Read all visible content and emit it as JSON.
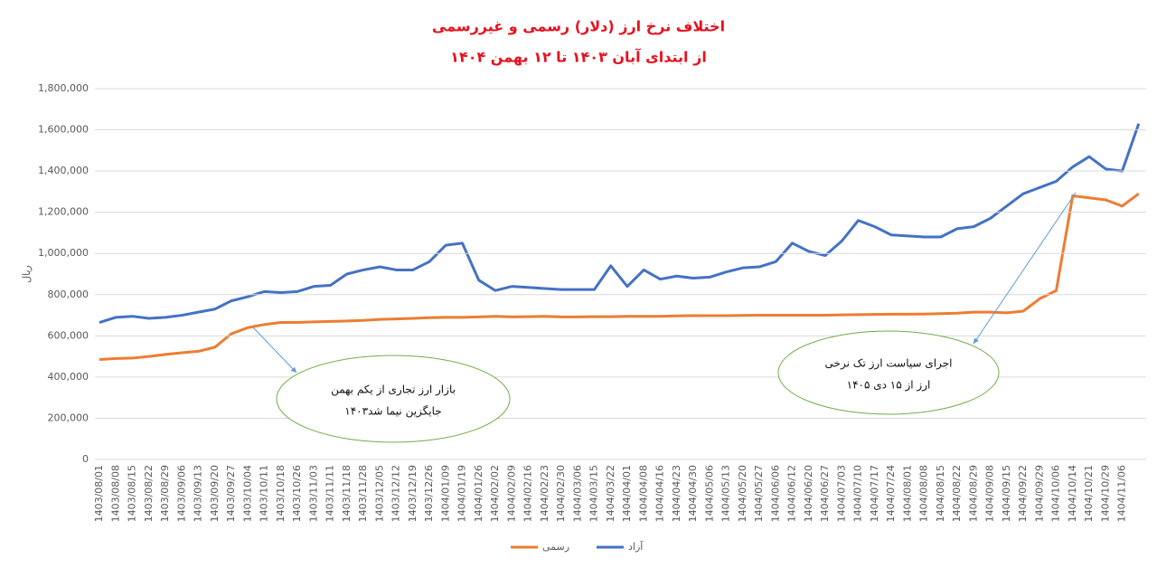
{
  "chart_data": {
    "type": "line",
    "title": [
      "اختلاف نرخ ارز (دلار) رسمی و غیررسمی",
      "از ابتدای آبان ۱۴۰۳ تا ۱۲ بهمن ۱۴۰۴"
    ],
    "y_label": "ریال",
    "categories": [
      "1403/08/01",
      "1403/08/08",
      "1403/08/15",
      "1403/08/22",
      "1403/08/29",
      "1403/09/06",
      "1403/09/13",
      "1403/09/20",
      "1403/09/27",
      "1403/10/04",
      "1403/10/11",
      "1403/10/18",
      "1403/10/26",
      "1403/11/03",
      "1403/11/11",
      "1403/11/18",
      "1403/11/28",
      "1403/12/05",
      "1403/12/12",
      "1403/12/19",
      "1403/12/26",
      "1404/01/09",
      "1404/01/19",
      "1404/01/26",
      "1404/02/02",
      "1404/02/09",
      "1404/02/16",
      "1404/02/23",
      "1404/02/30",
      "1404/03/06",
      "1404/03/15",
      "1404/03/22",
      "1404/04/01",
      "1404/04/08",
      "1404/04/16",
      "1404/04/23",
      "1404/04/30",
      "1404/05/06",
      "1404/05/13",
      "1404/05/20",
      "1404/05/27",
      "1404/06/06",
      "1404/06/12",
      "1404/06/20",
      "1404/06/27",
      "1404/07/03",
      "1404/07/10",
      "1404/07/17",
      "1404/07/24",
      "1404/08/01",
      "1404/08/08",
      "1404/08/15",
      "1404/08/22",
      "1404/08/29",
      "1404/09/08",
      "1404/09/15",
      "1404/09/22",
      "1404/09/29",
      "1404/10/06",
      "1404/10/14",
      "1404/10/21",
      "1404/10/29",
      "1404/11/06",
      null
    ],
    "series": [
      {
        "name": "آزاد",
        "color": "#4472c4",
        "values": [
          665000,
          690000,
          695000,
          685000,
          690000,
          700000,
          715000,
          730000,
          770000,
          790000,
          815000,
          810000,
          815000,
          840000,
          845000,
          900000,
          920000,
          935000,
          920000,
          920000,
          960000,
          1040000,
          1050000,
          870000,
          820000,
          840000,
          835000,
          830000,
          825000,
          825000,
          825000,
          940000,
          840000,
          920000,
          875000,
          890000,
          880000,
          885000,
          910000,
          930000,
          935000,
          960000,
          1050000,
          1010000,
          990000,
          1060000,
          1160000,
          1130000,
          1090000,
          1085000,
          1080000,
          1080000,
          1120000,
          1130000,
          1170000,
          1230000,
          1290000,
          1320000,
          1350000,
          1420000,
          1470000,
          1410000,
          1400000,
          1630000
        ]
      },
      {
        "name": "رسمی",
        "color": "#ed7d31",
        "values": [
          485000,
          490000,
          492000,
          500000,
          510000,
          518000,
          525000,
          545000,
          610000,
          640000,
          655000,
          665000,
          665000,
          668000,
          670000,
          672000,
          675000,
          680000,
          682000,
          685000,
          688000,
          690000,
          690000,
          692000,
          695000,
          692000,
          693000,
          695000,
          692000,
          692000,
          693000,
          693000,
          695000,
          695000,
          695000,
          697000,
          698000,
          698000,
          698000,
          699000,
          700000,
          700000,
          700000,
          700000,
          700000,
          702000,
          703000,
          704000,
          705000,
          705000,
          706000,
          708000,
          710000,
          715000,
          715000,
          712000,
          720000,
          780000,
          820000,
          1280000,
          1270000,
          1260000,
          1230000,
          1290000
        ]
      }
    ],
    "ylim": [
      0,
      1800000
    ],
    "yticks": [
      0,
      {
        "value": 200000,
        "label": "200,000"
      },
      {
        "value": 400000,
        "label": "400,000"
      },
      {
        "value": 600000,
        "label": "600,000"
      },
      {
        "value": 800000,
        "label": "800,000"
      },
      {
        "value": 1000000,
        "label": "1,000,000"
      },
      {
        "value": 1200000,
        "label": "1,200,000"
      },
      {
        "value": 1400000,
        "label": "1,400,000"
      },
      {
        "value": 1600000,
        "label": "1,600,000"
      },
      {
        "value": 1800000,
        "label": "1,800,000"
      }
    ],
    "grid": true,
    "annotations": [
      {
        "lines": [
          "بازار ارز تجاری از یکم بهمن",
          "۱۴۰۳جایگزین نیما شد"
        ]
      },
      {
        "lines": [
          "اجرای سیاست ارز تک نرخی",
          "ارز از ۱۵ دی ۱۴۰۵"
        ]
      }
    ]
  }
}
